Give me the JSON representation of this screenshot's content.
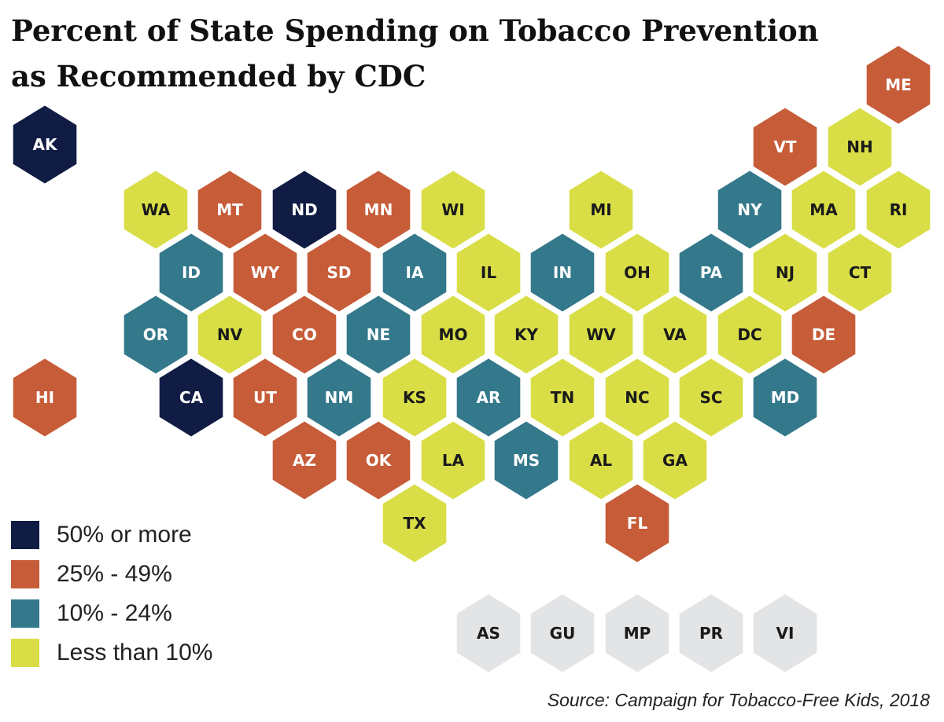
{
  "title": {
    "line1": "Percent of State Spending on Tobacco Prevention",
    "line2": "as Recommended by CDC"
  },
  "colors": {
    "c50": "#101c44",
    "c25": "#c65c38",
    "c10": "#33788b",
    "c0": "#d9de47",
    "territory": "#e3e4e6"
  },
  "legend": [
    {
      "category": "c50",
      "label": "50% or more"
    },
    {
      "category": "c25",
      "label": "25% - 49%"
    },
    {
      "category": "c10",
      "label": "10% - 24%"
    },
    {
      "category": "c0",
      "label": "Less than 10%"
    }
  ],
  "map_data": {
    "type": "hex-tile-map",
    "states": [
      {
        "abbr": "ME",
        "category": "c25"
      },
      {
        "abbr": "VT",
        "category": "c25"
      },
      {
        "abbr": "NH",
        "category": "c0"
      },
      {
        "abbr": "AK",
        "category": "c50"
      },
      {
        "abbr": "WA",
        "category": "c0"
      },
      {
        "abbr": "MT",
        "category": "c25"
      },
      {
        "abbr": "ND",
        "category": "c50"
      },
      {
        "abbr": "MN",
        "category": "c25"
      },
      {
        "abbr": "WI",
        "category": "c0"
      },
      {
        "abbr": "MI",
        "category": "c0"
      },
      {
        "abbr": "NY",
        "category": "c10"
      },
      {
        "abbr": "MA",
        "category": "c0"
      },
      {
        "abbr": "RI",
        "category": "c0"
      },
      {
        "abbr": "ID",
        "category": "c10"
      },
      {
        "abbr": "WY",
        "category": "c25"
      },
      {
        "abbr": "SD",
        "category": "c25"
      },
      {
        "abbr": "IA",
        "category": "c10"
      },
      {
        "abbr": "IL",
        "category": "c0"
      },
      {
        "abbr": "IN",
        "category": "c10"
      },
      {
        "abbr": "OH",
        "category": "c0"
      },
      {
        "abbr": "PA",
        "category": "c10"
      },
      {
        "abbr": "NJ",
        "category": "c0"
      },
      {
        "abbr": "CT",
        "category": "c0"
      },
      {
        "abbr": "OR",
        "category": "c10"
      },
      {
        "abbr": "NV",
        "category": "c0"
      },
      {
        "abbr": "CO",
        "category": "c25"
      },
      {
        "abbr": "NE",
        "category": "c10"
      },
      {
        "abbr": "MO",
        "category": "c0"
      },
      {
        "abbr": "KY",
        "category": "c0"
      },
      {
        "abbr": "WV",
        "category": "c0"
      },
      {
        "abbr": "VA",
        "category": "c0"
      },
      {
        "abbr": "DC",
        "category": "c0"
      },
      {
        "abbr": "DE",
        "category": "c25"
      },
      {
        "abbr": "HI",
        "category": "c25"
      },
      {
        "abbr": "CA",
        "category": "c50"
      },
      {
        "abbr": "UT",
        "category": "c25"
      },
      {
        "abbr": "NM",
        "category": "c10"
      },
      {
        "abbr": "KS",
        "category": "c0"
      },
      {
        "abbr": "AR",
        "category": "c10"
      },
      {
        "abbr": "TN",
        "category": "c0"
      },
      {
        "abbr": "NC",
        "category": "c0"
      },
      {
        "abbr": "SC",
        "category": "c0"
      },
      {
        "abbr": "MD",
        "category": "c10"
      },
      {
        "abbr": "AZ",
        "category": "c25"
      },
      {
        "abbr": "OK",
        "category": "c25"
      },
      {
        "abbr": "LA",
        "category": "c0"
      },
      {
        "abbr": "MS",
        "category": "c10"
      },
      {
        "abbr": "AL",
        "category": "c0"
      },
      {
        "abbr": "GA",
        "category": "c0"
      },
      {
        "abbr": "TX",
        "category": "c0"
      },
      {
        "abbr": "FL",
        "category": "c25"
      }
    ],
    "territories": [
      {
        "abbr": "AS",
        "category": "territory"
      },
      {
        "abbr": "GU",
        "category": "territory"
      },
      {
        "abbr": "MP",
        "category": "territory"
      },
      {
        "abbr": "PR",
        "category": "territory"
      },
      {
        "abbr": "VI",
        "category": "territory"
      }
    ]
  },
  "source": "Source:  Campaign for Tobacco-Free Kids, 2018"
}
